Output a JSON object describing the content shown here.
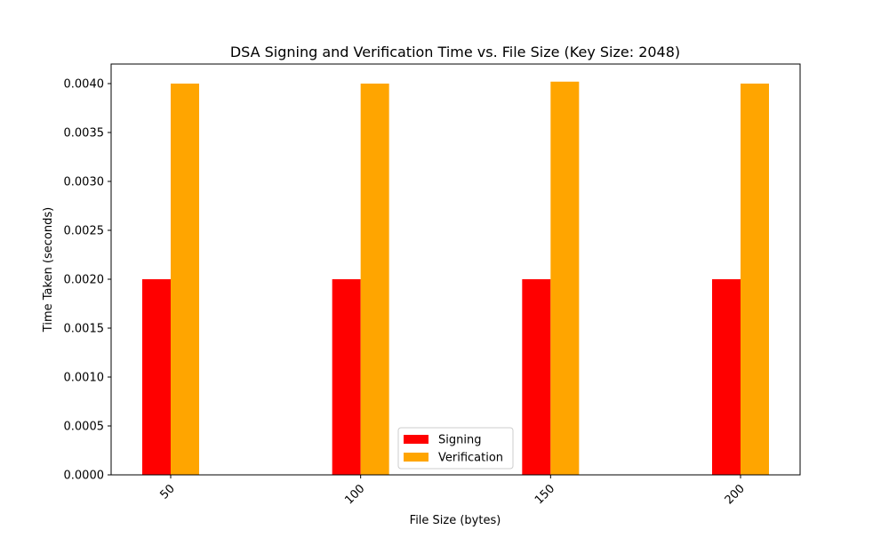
{
  "chart_data": {
    "type": "bar",
    "title": "DSA Signing and Verification Time vs. File Size (Key Size: 2048)",
    "xlabel": "File Size (bytes)",
    "ylabel": "Time Taken (seconds)",
    "categories": [
      "50",
      "100",
      "150",
      "200"
    ],
    "series": [
      {
        "name": "Signing",
        "color": "#ff0000",
        "values": [
          0.002,
          0.002,
          0.002,
          0.002
        ]
      },
      {
        "name": "Verification",
        "color": "#ffa500",
        "values": [
          0.004,
          0.004,
          0.00402,
          0.004
        ]
      }
    ],
    "ylim": [
      0,
      0.0042
    ],
    "yticks": [
      "0.0000",
      "0.0005",
      "0.0010",
      "0.0015",
      "0.0020",
      "0.0025",
      "0.0030",
      "0.0035",
      "0.0040"
    ],
    "grid": false,
    "legend_position": "bottom-center"
  }
}
